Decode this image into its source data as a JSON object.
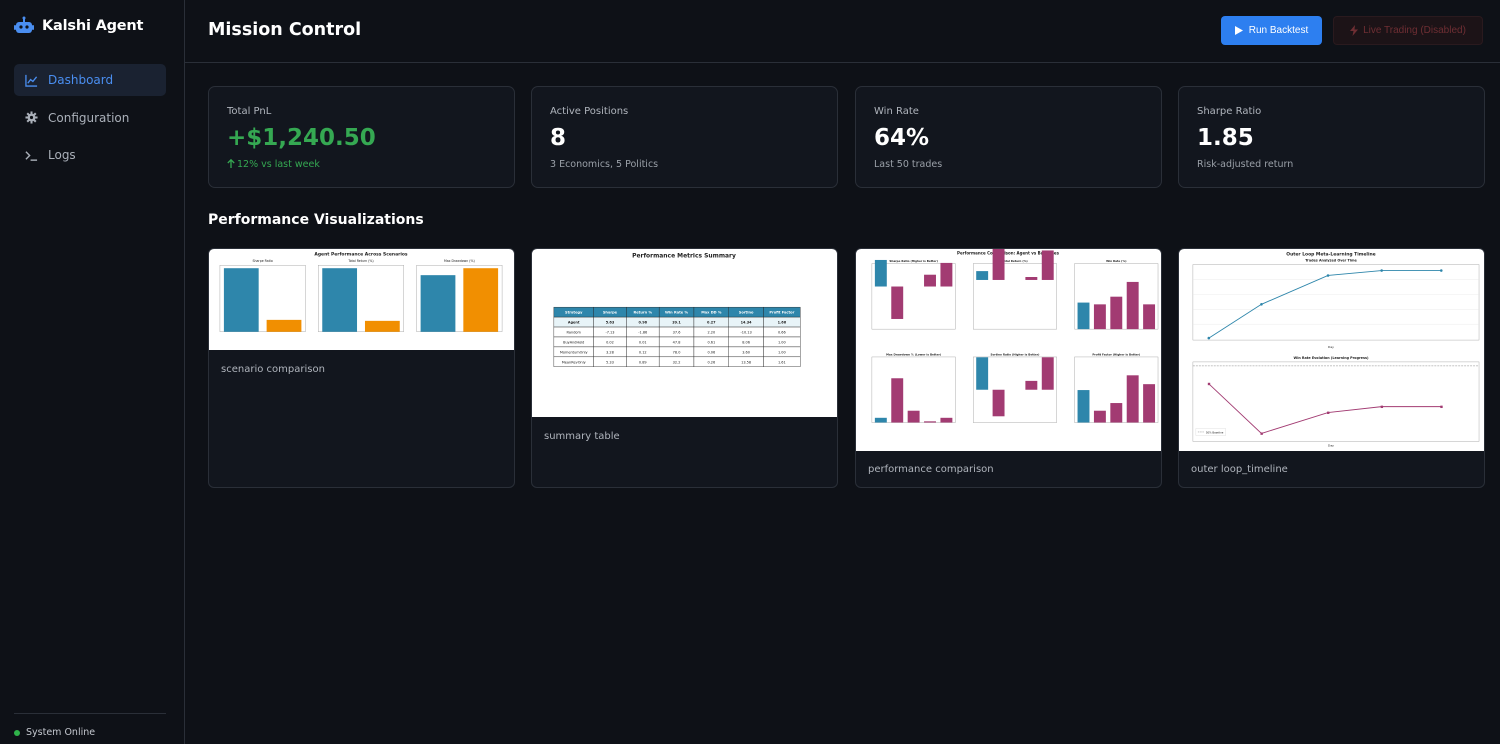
{
  "app": {
    "name": "Kalshi Agent"
  },
  "sidebar": {
    "items": [
      {
        "label": "Dashboard",
        "icon": "chart-line-icon",
        "active": true
      },
      {
        "label": "Configuration",
        "icon": "gear-icon",
        "active": false
      },
      {
        "label": "Logs",
        "icon": "terminal-icon",
        "active": false
      }
    ],
    "status": "System Online"
  },
  "header": {
    "title": "Mission Control",
    "run_backtest_label": "Run Backtest",
    "live_trading_label": "Live Trading (Disabled)"
  },
  "stats": [
    {
      "label": "Total PnL",
      "value": "+$1,240.50",
      "sub": "12% vs last week"
    },
    {
      "label": "Active Positions",
      "value": "8",
      "sub": "3 Economics, 5 Politics"
    },
    {
      "label": "Win Rate",
      "value": "64%",
      "sub": "Last 50 trades"
    },
    {
      "label": "Sharpe Ratio",
      "value": "1.85",
      "sub": "Risk-adjusted return"
    }
  ],
  "visualizations": {
    "title": "Performance Visualizations",
    "items": [
      {
        "caption": "scenario comparison",
        "figure_title": "Agent Performance Across Scenarios",
        "panels": [
          "Sharpe Ratio",
          "Total Return (%)",
          "Max Drawdown (%)"
        ]
      },
      {
        "caption": "summary table",
        "figure_title": "Performance Metrics Summary",
        "columns": [
          "Strategy",
          "Sharpe",
          "Return %",
          "Win Rate %",
          "Max DD %",
          "Sortino",
          "Profit Factor"
        ],
        "rows": [
          [
            "Agent",
            "5.63",
            "0.96",
            "39.1",
            "0.27",
            "14.34",
            "1.66"
          ],
          [
            "Random",
            "-7.13",
            "-1.86",
            "37.6",
            "2.20",
            "-10.13",
            "0.66"
          ],
          [
            "BuyAndHold",
            "0.02",
            "0.01",
            "47.8",
            "0.61",
            "8.06",
            "1.00"
          ],
          [
            "MomentumOnly",
            "3.28",
            "0.12",
            "78.0",
            "0.06",
            "3.60",
            "1.00"
          ],
          [
            "MeanRevOnly",
            "5.33",
            "0.89",
            "32.2",
            "0.26",
            "13.58",
            "1.61"
          ]
        ]
      },
      {
        "caption": "performance comparison",
        "figure_title": "Performance Comparison: Agent vs Baselines",
        "panels": [
          "Sharpe Ratio (Higher is Better)",
          "Total Return (%)",
          "Win Rate (%)",
          "Max Drawdown % (Lower is Better)",
          "Sortino Ratio (Higher is Better)",
          "Profit Factor (Higher is Better)"
        ]
      },
      {
        "caption": "outer loop_timeline",
        "figure_title": "Outer Loop Meta-Learning Timeline",
        "panels": [
          "Trades Analyzed Over Time",
          "Win Rate Evolution (Learning Progress)"
        ],
        "xlabel": "Day",
        "legend": "50% Baseline"
      }
    ]
  },
  "colors": {
    "accent": "#2d7ff0",
    "positive": "#35a852",
    "bar_blue": "#2e86ab",
    "bar_orange": "#f18f01",
    "bar_magenta": "#a23b72"
  }
}
